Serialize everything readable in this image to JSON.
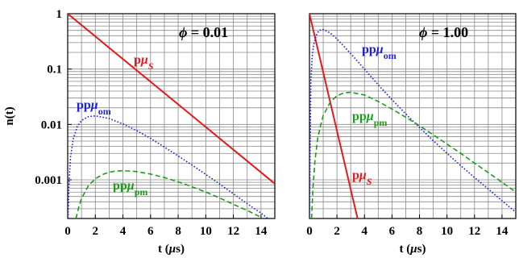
{
  "chart_data": [
    {
      "type": "line",
      "annotation": "ϕ = 0.01",
      "xlabel": "t (μs)",
      "ylabel": "n(t)",
      "xlim": [
        0,
        15
      ],
      "ylim": [
        0.0002,
        1
      ],
      "yscale": "log",
      "grid": true,
      "xticks": [
        "0",
        "2",
        "4",
        "6",
        "8",
        "10",
        "12",
        "14"
      ],
      "yticks": [
        "1",
        "0.1",
        "0.01",
        "0.001"
      ],
      "series": [
        {
          "label": "pμS",
          "color": "#e31a1c",
          "style": "solid",
          "x": [
            0,
            15
          ],
          "y": [
            1.0,
            0.00085
          ]
        },
        {
          "label": "ppμom",
          "color": "#1f1fe0",
          "style": "dotted",
          "x": [
            0.03,
            0.1,
            0.2,
            0.4,
            0.7,
            1.0,
            1.5,
            2.0,
            3.0,
            4.0,
            5.0,
            6.0,
            7.0,
            8.0,
            9.0,
            10.0,
            11.0,
            12.0,
            13.0,
            14.0,
            15.0
          ],
          "y": [
            0.0002,
            0.0009,
            0.0025,
            0.0055,
            0.0092,
            0.0118,
            0.0138,
            0.0143,
            0.0128,
            0.0102,
            0.0077,
            0.0056,
            0.0039,
            0.0027,
            0.00185,
            0.00125,
            0.00084,
            0.00056,
            0.00037,
            0.00025,
            0.00016
          ]
        },
        {
          "label": "ppμpm",
          "color": "#1a9e1a",
          "style": "dashed",
          "x": [
            0.6,
            0.8,
            1.0,
            1.5,
            2.0,
            2.5,
            3.0,
            3.5,
            4.0,
            5.0,
            6.0,
            7.0,
            8.0,
            9.0,
            10.0,
            11.0,
            12.0,
            13.0,
            14.0
          ],
          "y": [
            0.0002,
            0.00032,
            0.00046,
            0.00078,
            0.00104,
            0.00124,
            0.00137,
            0.00144,
            0.00146,
            0.00141,
            0.00127,
            0.0011,
            0.00092,
            0.00075,
            0.0006,
            0.00047,
            0.00036,
            0.00028,
            0.00021
          ]
        }
      ]
    },
    {
      "type": "line",
      "annotation": "ϕ = 1.00",
      "xlabel": "t (μs)",
      "ylabel": "",
      "xlim": [
        0,
        15
      ],
      "ylim": [
        0.0002,
        1
      ],
      "yscale": "log",
      "grid": true,
      "xticks": [
        "0",
        "2",
        "4",
        "6",
        "8",
        "10",
        "12",
        "14"
      ],
      "yticks": [],
      "series": [
        {
          "label": "pμS",
          "color": "#e31a1c",
          "style": "solid",
          "x": [
            0,
            3.5
          ],
          "y": [
            1.0,
            0.0002
          ]
        },
        {
          "label": "ppμom",
          "color": "#1f1fe0",
          "style": "dotted",
          "x": [
            0,
            0.1,
            0.2,
            0.3,
            0.5,
            0.7,
            1.0,
            1.5,
            2.0,
            3.0,
            4.0,
            5.0,
            6.0,
            7.0,
            8.0,
            9.0,
            10.0,
            11.0,
            12.0,
            13.0,
            14.0,
            15.0
          ],
          "y": [
            0.0002,
            0.06,
            0.17,
            0.27,
            0.41,
            0.5,
            0.52,
            0.45,
            0.35,
            0.19,
            0.1,
            0.052,
            0.028,
            0.0155,
            0.0088,
            0.0051,
            0.003,
            0.0018,
            0.0011,
            0.00068,
            0.00042,
            0.00026
          ]
        },
        {
          "label": "ppμpm",
          "color": "#1a9e1a",
          "style": "dashed",
          "x": [
            0.15,
            0.25,
            0.4,
            0.6,
            0.8,
            1.0,
            1.5,
            2.0,
            2.5,
            3.0,
            4.0,
            5.0,
            6.0,
            7.0,
            8.0,
            9.0,
            10.0,
            11.0,
            12.0,
            13.0,
            14.0,
            15.0
          ],
          "y": [
            0.0002,
            0.0007,
            0.0022,
            0.0055,
            0.0095,
            0.0145,
            0.025,
            0.033,
            0.037,
            0.038,
            0.034,
            0.026,
            0.019,
            0.0135,
            0.0095,
            0.0065,
            0.0044,
            0.003,
            0.002,
            0.00135,
            0.0009,
            0.0006
          ]
        }
      ]
    }
  ]
}
